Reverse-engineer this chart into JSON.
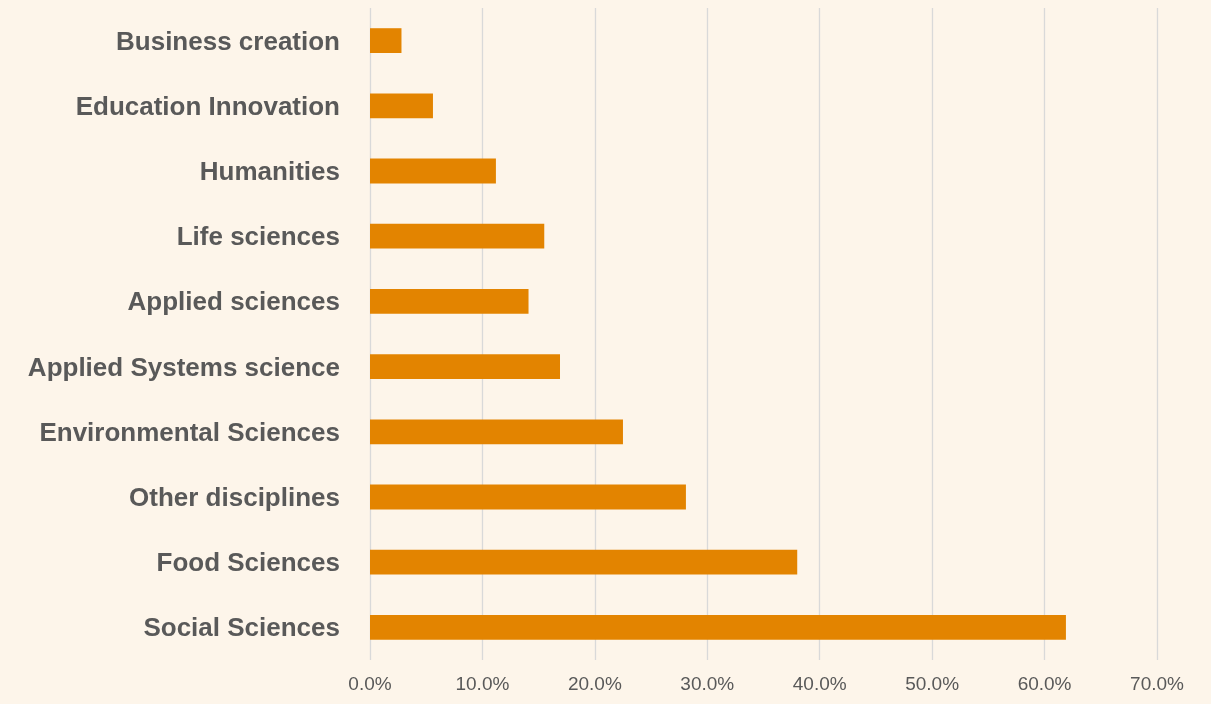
{
  "chart_data": {
    "type": "bar",
    "orientation": "horizontal",
    "categories": [
      "Business creation",
      "Education Innovation",
      "Humanities",
      "Life sciences",
      "Applied sciences",
      "Applied Systems science",
      "Environmental Sciences",
      "Other disciplines",
      "Food Sciences",
      "Social Sciences"
    ],
    "values": [
      2.8,
      5.6,
      11.2,
      15.5,
      14.1,
      16.9,
      22.5,
      28.1,
      38.0,
      61.9
    ],
    "color": "#e38400",
    "xlim": [
      0,
      70
    ],
    "xticks": [
      {
        "value": 0,
        "label": "0.0%"
      },
      {
        "value": 10,
        "label": "10.0%"
      },
      {
        "value": 20,
        "label": "20.0%"
      },
      {
        "value": 30,
        "label": "30.0%"
      },
      {
        "value": 40,
        "label": "40.0%"
      },
      {
        "value": 50,
        "label": "50.0%"
      },
      {
        "value": 60,
        "label": "60.0%"
      },
      {
        "value": 70,
        "label": "70.0%"
      }
    ],
    "grid": "x"
  }
}
